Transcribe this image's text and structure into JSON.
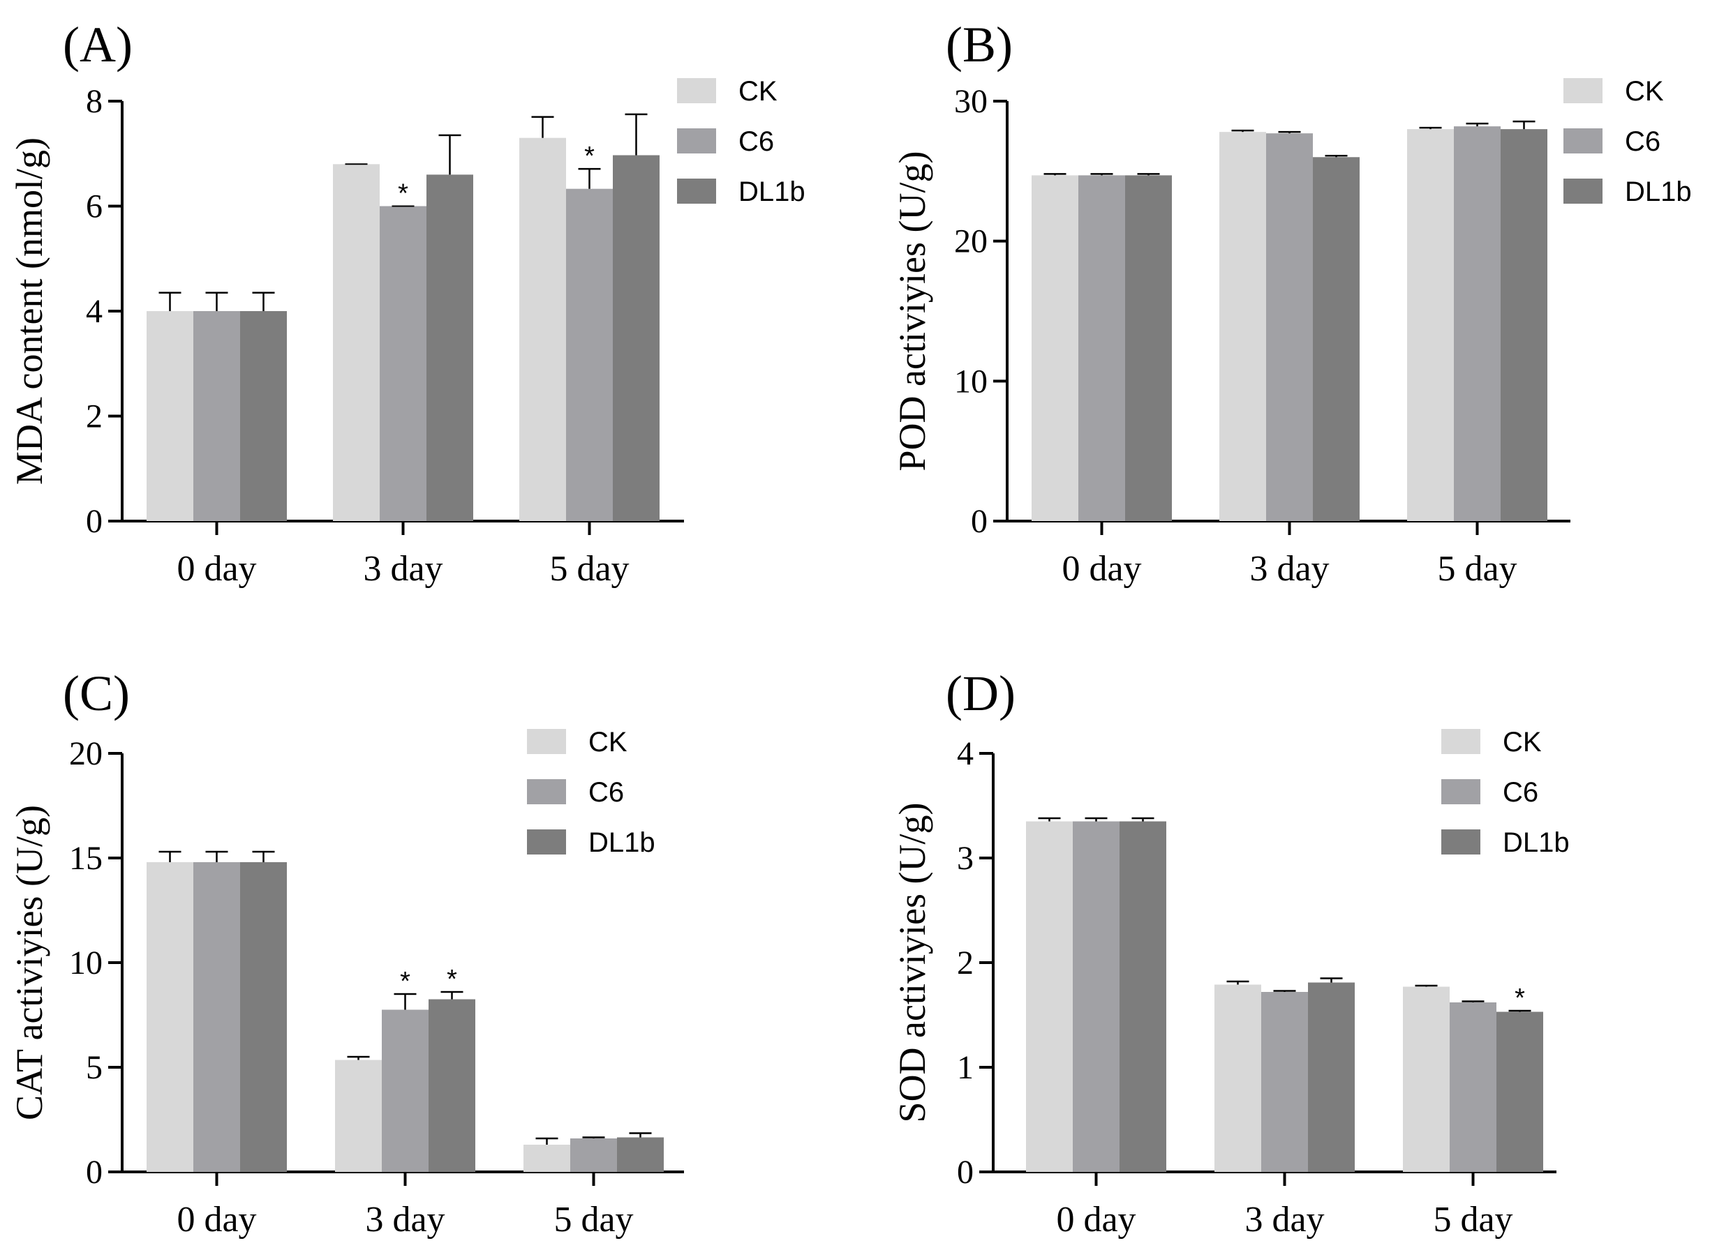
{
  "figure": {
    "chart_data": [
      {
        "panel": "(A)",
        "type": "bar",
        "ylabel": "MDA content (nmol/g)",
        "xlabel": "",
        "ylim": [
          0,
          8
        ],
        "yticks": [
          0,
          2,
          4,
          6,
          8
        ],
        "categories": [
          "0 day",
          "3 day",
          "5 day"
        ],
        "legend": [
          "CK",
          "C6",
          "DL1b"
        ],
        "legend_position": "top-right",
        "series": [
          {
            "name": "CK",
            "color": "#d8d8d8",
            "values": [
              4.0,
              6.8,
              7.3
            ],
            "errors": [
              0.35,
              0.0,
              0.4
            ],
            "significance": [
              "",
              "",
              ""
            ]
          },
          {
            "name": "C6",
            "color": "#a1a1a5",
            "values": [
              4.0,
              6.0,
              6.33
            ],
            "errors": [
              0.35,
              0.0,
              0.38
            ],
            "significance": [
              "",
              "*",
              "*"
            ]
          },
          {
            "name": "DL1b",
            "color": "#7d7d7d",
            "values": [
              4.0,
              6.6,
              6.97
            ],
            "errors": [
              0.35,
              0.75,
              0.78
            ],
            "significance": [
              "",
              "",
              ""
            ]
          }
        ]
      },
      {
        "panel": "(B)",
        "type": "bar",
        "ylabel": "POD activiyies (U/g)",
        "xlabel": "",
        "ylim": [
          0,
          30
        ],
        "yticks": [
          0,
          10,
          20,
          30
        ],
        "categories": [
          "0 day",
          "3 day",
          "5 day"
        ],
        "legend": [
          "CK",
          "C6",
          "DL1b"
        ],
        "legend_position": "top-right",
        "series": [
          {
            "name": "CK",
            "color": "#d8d8d8",
            "values": [
              24.7,
              27.8,
              28.0
            ],
            "errors": [
              0.1,
              0.1,
              0.1
            ],
            "significance": [
              "",
              "",
              ""
            ]
          },
          {
            "name": "C6",
            "color": "#a1a1a5",
            "values": [
              24.7,
              27.7,
              28.2
            ],
            "errors": [
              0.1,
              0.1,
              0.2
            ],
            "significance": [
              "",
              "",
              ""
            ]
          },
          {
            "name": "DL1b",
            "color": "#7d7d7d",
            "values": [
              24.7,
              26.0,
              28.0
            ],
            "errors": [
              0.1,
              0.1,
              0.55
            ],
            "significance": [
              "",
              "",
              ""
            ]
          }
        ]
      },
      {
        "panel": "(C)",
        "type": "bar",
        "ylabel": "CAT activiyies (U/g)",
        "xlabel": "",
        "ylim": [
          0,
          20
        ],
        "yticks": [
          0,
          5,
          10,
          15,
          20
        ],
        "categories": [
          "0 day",
          "3 day",
          "5 day"
        ],
        "legend": [
          "CK",
          "C6",
          "DL1b"
        ],
        "legend_position": "top-right",
        "series": [
          {
            "name": "CK",
            "color": "#d8d8d8",
            "values": [
              14.8,
              5.35,
              1.3
            ],
            "errors": [
              0.5,
              0.15,
              0.3
            ],
            "significance": [
              "",
              "",
              ""
            ]
          },
          {
            "name": "C6",
            "color": "#a1a1a5",
            "values": [
              14.8,
              7.75,
              1.6
            ],
            "errors": [
              0.5,
              0.75,
              0.05
            ],
            "significance": [
              "",
              "*",
              ""
            ]
          },
          {
            "name": "DL1b",
            "color": "#7d7d7d",
            "values": [
              14.8,
              8.25,
              1.65
            ],
            "errors": [
              0.5,
              0.35,
              0.2
            ],
            "significance": [
              "",
              "*",
              ""
            ]
          }
        ]
      },
      {
        "panel": "(D)",
        "type": "bar",
        "ylabel": "SOD activiyies (U/g)",
        "xlabel": "",
        "ylim": [
          0,
          4
        ],
        "yticks": [
          0,
          1,
          2,
          3,
          4
        ],
        "categories": [
          "0 day",
          "3 day",
          "5 day"
        ],
        "legend": [
          "CK",
          "C6",
          "DL1b"
        ],
        "legend_position": "top-right",
        "series": [
          {
            "name": "CK",
            "color": "#d8d8d8",
            "values": [
              3.35,
              1.79,
              1.77
            ],
            "errors": [
              0.03,
              0.03,
              0.01
            ],
            "significance": [
              "",
              "",
              ""
            ]
          },
          {
            "name": "C6",
            "color": "#a1a1a5",
            "values": [
              3.35,
              1.72,
              1.62
            ],
            "errors": [
              0.03,
              0.01,
              0.01
            ],
            "significance": [
              "",
              "",
              ""
            ]
          },
          {
            "name": "DL1b",
            "color": "#7d7d7d",
            "values": [
              3.35,
              1.81,
              1.53
            ],
            "errors": [
              0.03,
              0.04,
              0.01
            ],
            "significance": [
              "",
              "",
              "*"
            ]
          }
        ]
      }
    ]
  }
}
